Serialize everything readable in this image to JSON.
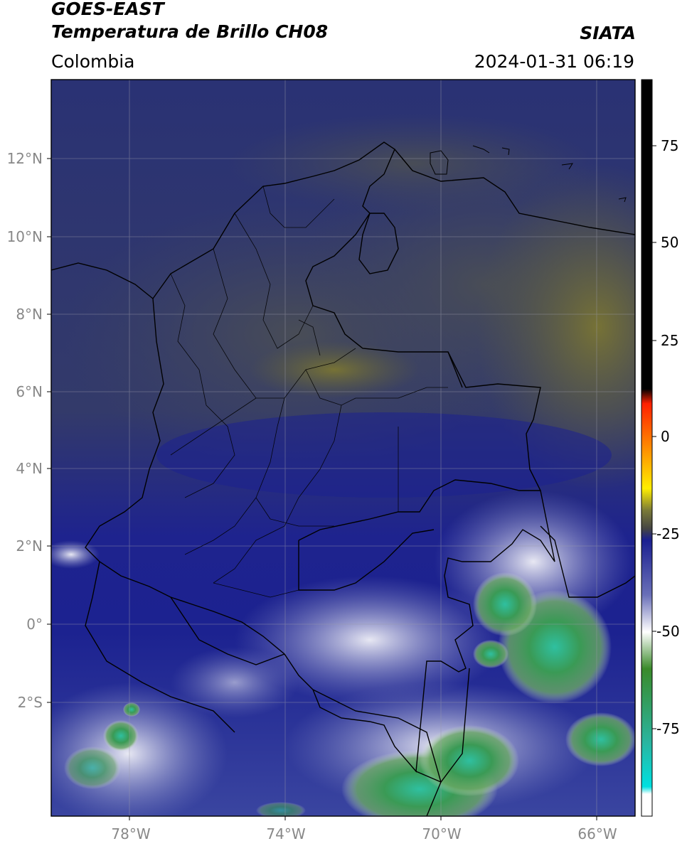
{
  "header": {
    "satellite": "GOES-EAST",
    "product": "Temperatura de Brillo CH08",
    "region": "Colombia",
    "brand": "SIATA",
    "datetime": "2024-01-31 06:19"
  },
  "map": {
    "lon_range": [
      -80,
      -65
    ],
    "lat_range": [
      -5,
      14
    ],
    "lat_ticks": [
      {
        "value": 12,
        "label": "12°N"
      },
      {
        "value": 10,
        "label": "10°N"
      },
      {
        "value": 8,
        "label": "8°N"
      },
      {
        "value": 6,
        "label": "6°N"
      },
      {
        "value": 4,
        "label": "4°N"
      },
      {
        "value": 2,
        "label": "2°N"
      },
      {
        "value": 0,
        "label": "0°"
      },
      {
        "value": -2,
        "label": "2°S"
      }
    ],
    "lon_ticks": [
      {
        "value": -78,
        "label": "78°W"
      },
      {
        "value": -74,
        "label": "74°W"
      },
      {
        "value": -70,
        "label": "70°W"
      },
      {
        "value": -66,
        "label": "66°W"
      }
    ],
    "gridlines": true,
    "colors": {
      "ocean_north": "#2b3370",
      "land_dry": "#444a55",
      "dry_olive": "#6b6a35",
      "deep_blue": "#1b1f8a",
      "cloud_white": "#e8e9f2",
      "cloud_green": "#3b8a35",
      "cloud_teal": "#2ab59a"
    }
  },
  "colorbar": {
    "range": [
      -95,
      90
    ],
    "ticks": [
      {
        "value": 75,
        "label": "75"
      },
      {
        "value": 50,
        "label": "50"
      },
      {
        "value": 25,
        "label": "25"
      },
      {
        "value": 0,
        "label": "0"
      },
      {
        "value": -25,
        "label": "-25"
      },
      {
        "value": -50,
        "label": "-50"
      },
      {
        "value": -75,
        "label": "-75"
      }
    ]
  }
}
